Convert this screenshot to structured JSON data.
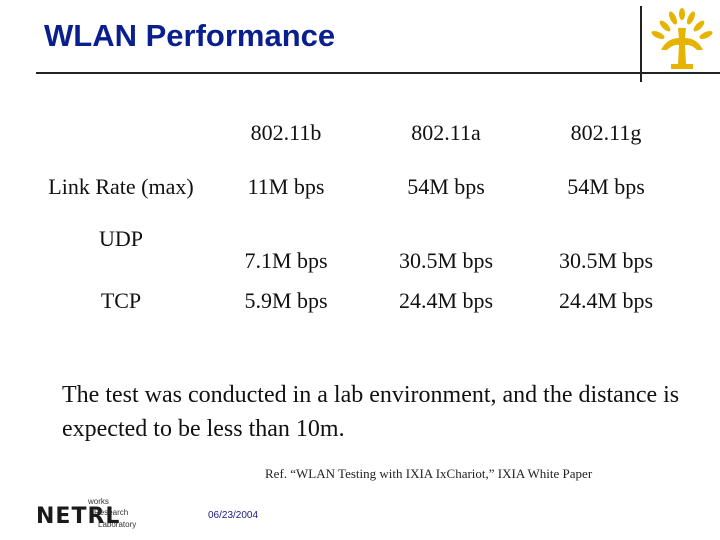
{
  "slide": {
    "title": "WLAN Performance"
  },
  "table": {
    "columns": [
      "",
      "802.11b",
      "802.11a",
      "802.11g"
    ],
    "rows": [
      {
        "label": "Link Rate (max)",
        "b": "11M bps",
        "a": "54M bps",
        "g": "54M bps"
      },
      {
        "label": "UDP",
        "b": "7.1M bps",
        "a": "30.5M bps",
        "g": "30.5M bps"
      },
      {
        "label": "TCP",
        "b": "5.9M bps",
        "a": "24.4M bps",
        "g": "24.4M bps"
      }
    ]
  },
  "note": "The test was conducted in a lab environment, and the distance is expected to be less than 10m.",
  "reference": "Ref. “WLAN Testing with IXIA IxChariot,” IXIA White Paper",
  "footer": {
    "logo_letters": "NETRL",
    "logo_words": [
      "works",
      "Research",
      "Laboratory"
    ],
    "date": "06/23/2004"
  },
  "colors": {
    "title": "#0a1f8f",
    "logo_gold": "#e6b400"
  }
}
